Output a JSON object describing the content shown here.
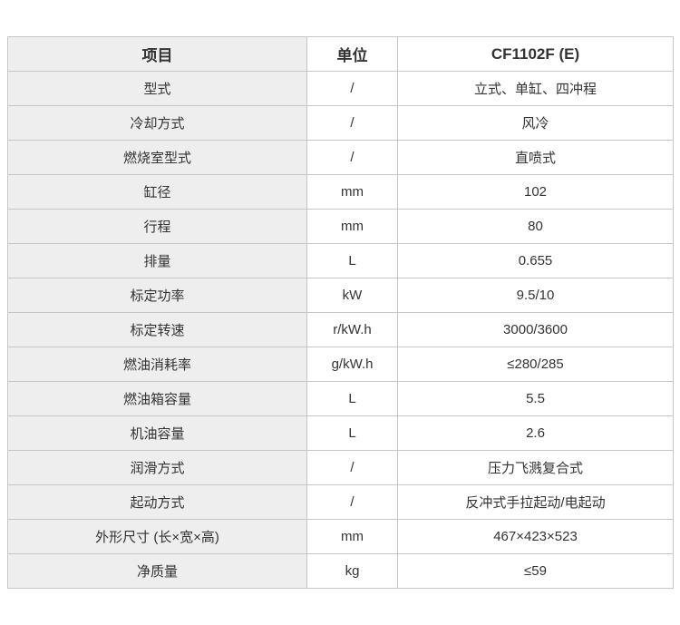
{
  "table": {
    "headers": {
      "item": "项目",
      "unit": "单位",
      "model": "CF1102F (E)"
    },
    "rows": [
      {
        "item": "型式",
        "unit": "/",
        "value": "立式、单缸、四冲程"
      },
      {
        "item": "冷却方式",
        "unit": "/",
        "value": "风冷"
      },
      {
        "item": "燃烧室型式",
        "unit": "/",
        "value": "直喷式"
      },
      {
        "item": "缸径",
        "unit": "mm",
        "value": "102"
      },
      {
        "item": "行程",
        "unit": "mm",
        "value": "80"
      },
      {
        "item": "排量",
        "unit": "L",
        "value": "0.655"
      },
      {
        "item": "标定功率",
        "unit": "kW",
        "value": "9.5/10"
      },
      {
        "item": "标定转速",
        "unit": "r/kW.h",
        "value": "3000/3600"
      },
      {
        "item": "燃油消耗率",
        "unit": "g/kW.h",
        "value": "≤280/285"
      },
      {
        "item": "燃油箱容量",
        "unit": "L",
        "value": "5.5"
      },
      {
        "item": "机油容量",
        "unit": "L",
        "value": "2.6"
      },
      {
        "item": "润滑方式",
        "unit": "/",
        "value": "压力飞溅复合式"
      },
      {
        "item": "起动方式",
        "unit": "/",
        "value": "反冲式手拉起动/电起动"
      },
      {
        "item": "外形尺寸 (长×宽×高)",
        "unit": "mm",
        "value": "467×423×523"
      },
      {
        "item": "净质量",
        "unit": "kg",
        "value": "≤59"
      }
    ],
    "colors": {
      "label_column_bg": "#eeeeee",
      "cell_bg": "#ffffff",
      "border": "#c6c6c6",
      "text": "#333333"
    }
  }
}
